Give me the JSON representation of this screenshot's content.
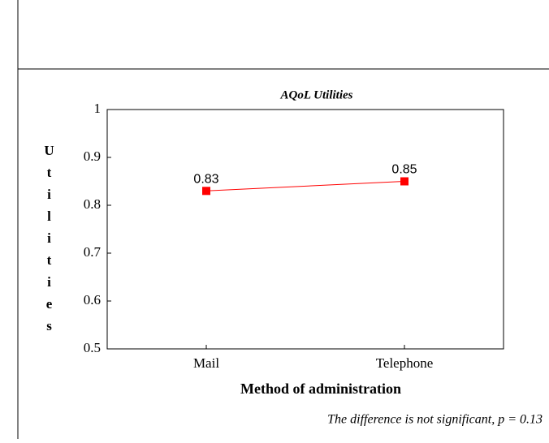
{
  "chart_data": {
    "type": "line",
    "title": "AQoL Utilities",
    "x_label": "Method of administration",
    "y_label": "Utilities",
    "categories": [
      "Mail",
      "Telephone"
    ],
    "values": [
      0.83,
      0.85
    ],
    "color": "#ff0000",
    "ylim": [
      0.5,
      1
    ],
    "yticks": [
      0.5,
      0.6,
      0.7,
      0.8,
      0.9,
      1
    ],
    "annotation": "The difference is not significant, p = 0.13"
  }
}
